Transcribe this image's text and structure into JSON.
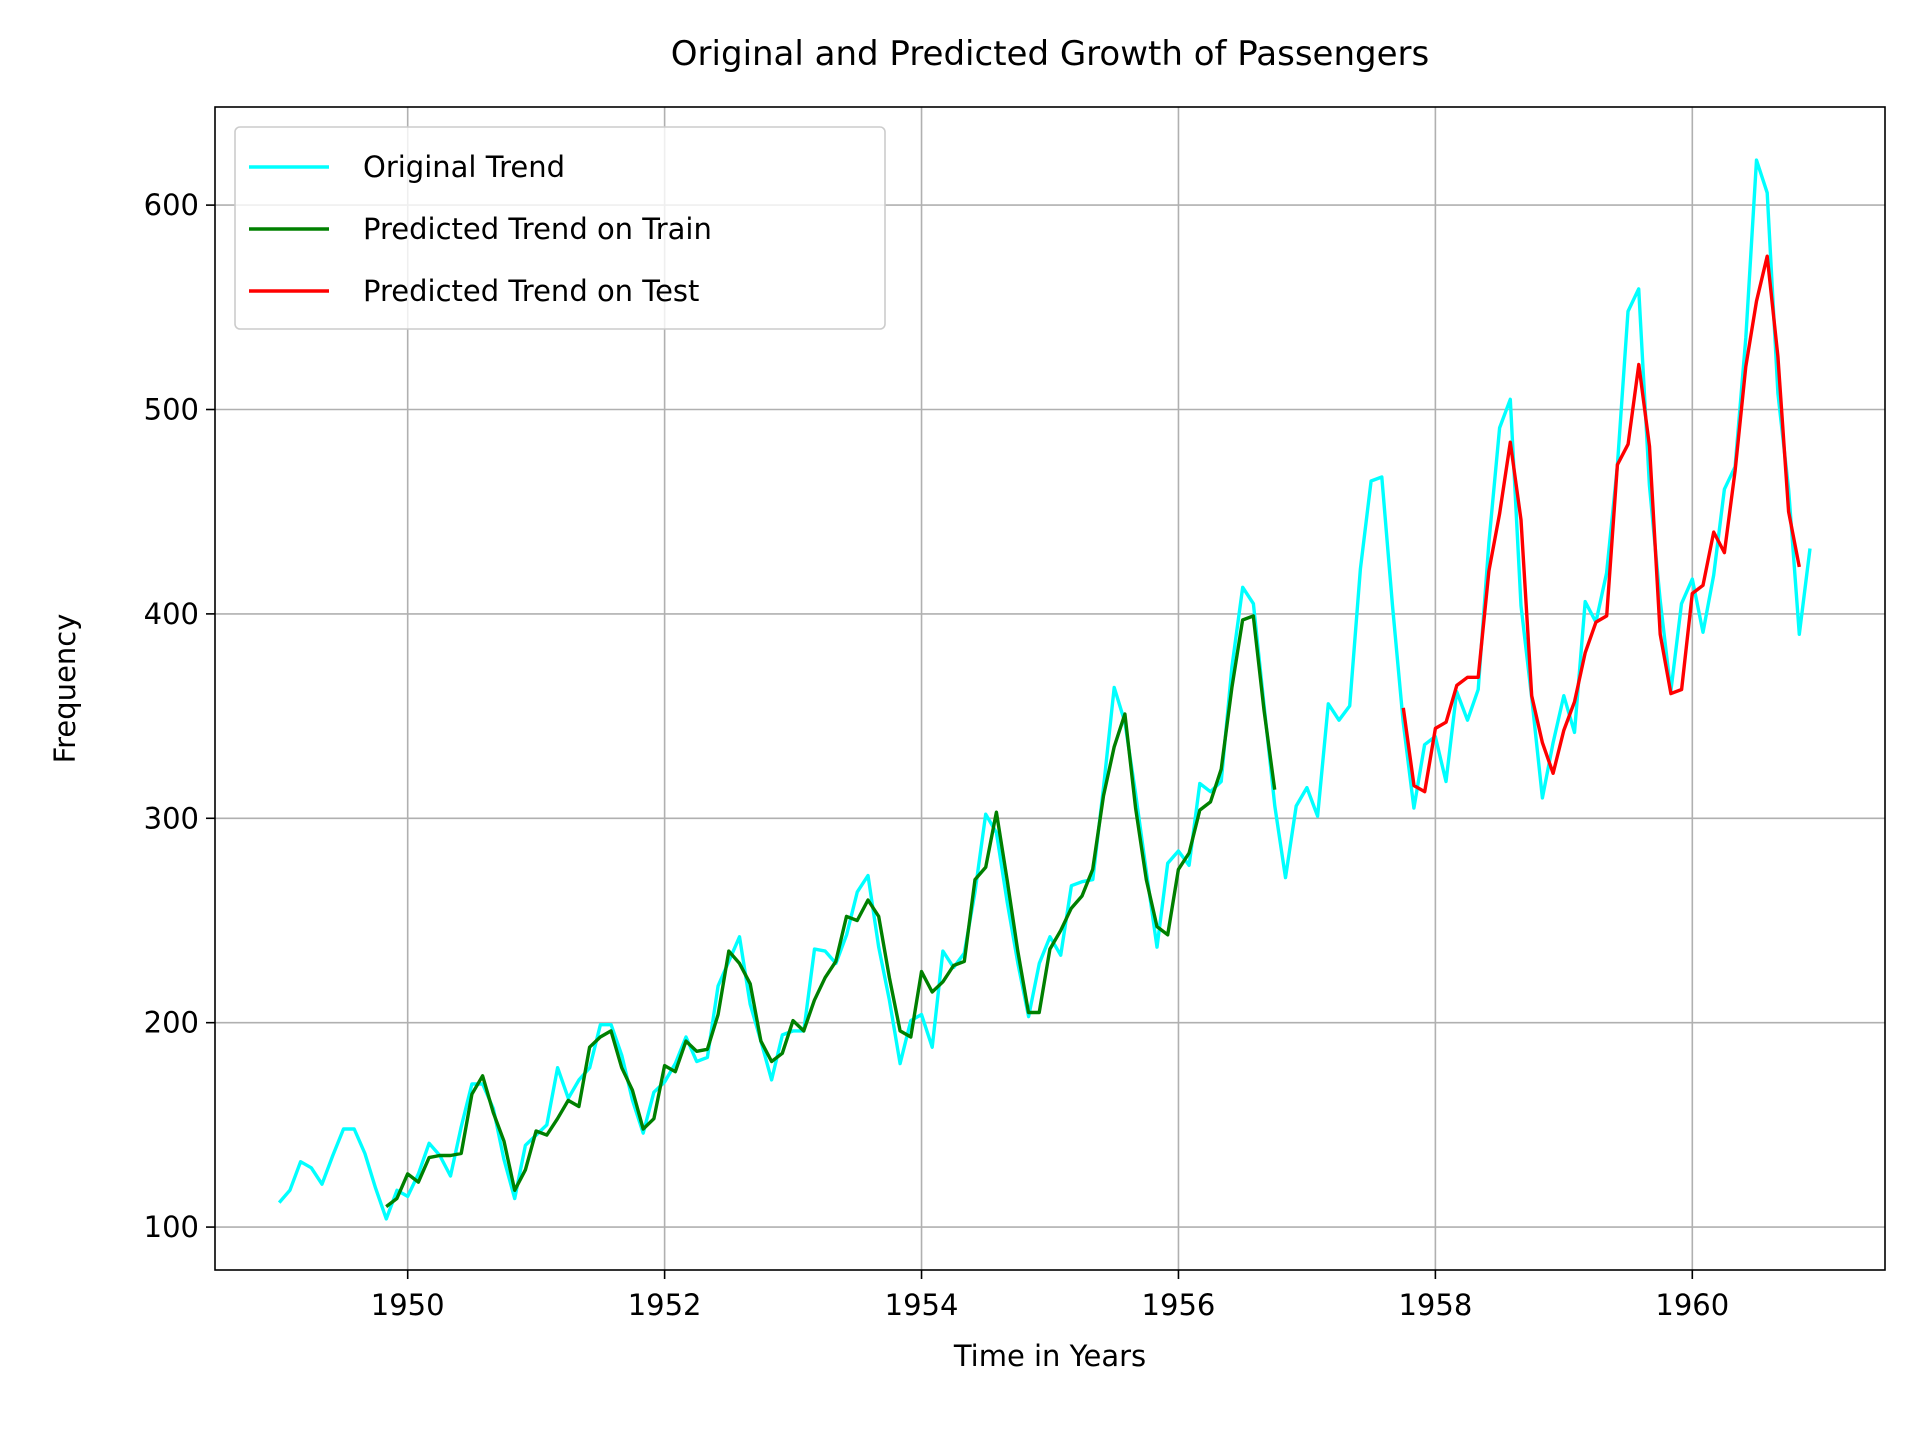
{
  "chart_data": {
    "type": "line",
    "title": "Original and Predicted Growth of Passengers",
    "xlabel": "Time in Years",
    "ylabel": "Frequency",
    "xlim": [
      1948.5,
      1961.5
    ],
    "ylim": [
      79,
      648
    ],
    "x_ticks": [
      1950,
      1952,
      1954,
      1956,
      1958,
      1960
    ],
    "y_ticks": [
      100,
      200,
      300,
      400,
      500,
      600
    ],
    "grid": true,
    "legend": "top-left",
    "series": [
      {
        "name": "Original Trend",
        "color": "#00ffff",
        "start": 1949.0,
        "step": 0.08333,
        "values": [
          112,
          118,
          132,
          129,
          121,
          135,
          148,
          148,
          136,
          119,
          104,
          118,
          115,
          126,
          141,
          135,
          125,
          149,
          170,
          170,
          158,
          133,
          114,
          140,
          145,
          150,
          178,
          163,
          172,
          178,
          199,
          199,
          184,
          162,
          146,
          166,
          171,
          180,
          193,
          181,
          183,
          218,
          230,
          242,
          209,
          191,
          172,
          194,
          196,
          196,
          236,
          235,
          229,
          243,
          264,
          272,
          237,
          211,
          180,
          201,
          204,
          188,
          235,
          227,
          234,
          264,
          302,
          293,
          259,
          229,
          203,
          229,
          242,
          233,
          267,
          269,
          270,
          315,
          364,
          347,
          312,
          274,
          237,
          278,
          284,
          277,
          317,
          313,
          318,
          374,
          413,
          405,
          355,
          306,
          271,
          306,
          315,
          301,
          356,
          348,
          355,
          422,
          465,
          467,
          404,
          347,
          305,
          336,
          340,
          318,
          362,
          348,
          363,
          435,
          491,
          505,
          404,
          359,
          310,
          337,
          360,
          342,
          406,
          396,
          420,
          472,
          548,
          559,
          463,
          407,
          362,
          405,
          417,
          391,
          419,
          461,
          472,
          535,
          622,
          606,
          508,
          461,
          390,
          432
        ]
      },
      {
        "name": "Predicted Trend on Train",
        "color": "#008000",
        "start": 1949.833,
        "step": 0.08333,
        "values": [
          110,
          114,
          126,
          122,
          134,
          135,
          135,
          136,
          165,
          174,
          156,
          142,
          118,
          128,
          147,
          145,
          153,
          162,
          159,
          188,
          193,
          196,
          178,
          167,
          148,
          153,
          179,
          176,
          191,
          186,
          187,
          204,
          235,
          229,
          219,
          191,
          181,
          185,
          201,
          196,
          211,
          222,
          230,
          252,
          250,
          260,
          252,
          222,
          196,
          193,
          225,
          215,
          220,
          228,
          230,
          270,
          276,
          303,
          270,
          235,
          205,
          205,
          236,
          245,
          256,
          262,
          275,
          311,
          335,
          351,
          305,
          270,
          247,
          243,
          275,
          283,
          304,
          308,
          324,
          364,
          397,
          399,
          353,
          314
        ]
      },
      {
        "name": "Predicted Trend on Test",
        "color": "#ff0000",
        "start": 1957.75,
        "step": 0.08333,
        "values": [
          354,
          316,
          313,
          344,
          347,
          365,
          369,
          369,
          421,
          449,
          484,
          446,
          360,
          337,
          322,
          343,
          357,
          381,
          396,
          399,
          473,
          483,
          522,
          482,
          390,
          361,
          363,
          410,
          414,
          440,
          430,
          470,
          521,
          553,
          575,
          526,
          450,
          423
        ]
      }
    ]
  }
}
